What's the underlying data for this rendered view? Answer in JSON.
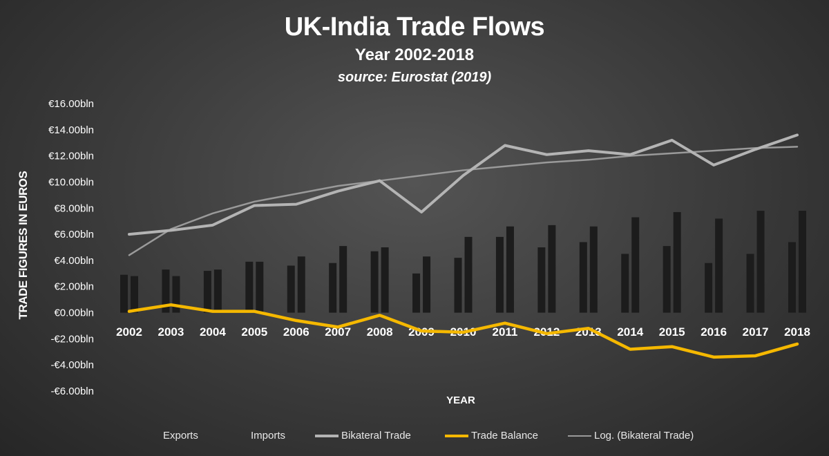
{
  "chart_data": {
    "type": "bar",
    "title": "UK-India Trade Flows",
    "subtitle": "Year 2002-2018",
    "source": "source: Eurostat (2019)",
    "xlabel": "YEAR",
    "ylabel": "TRADE FIGURES IN EUROS",
    "ylim": [
      -6,
      16
    ],
    "yticks": [
      {
        "value": 16,
        "label": "€16.00bln"
      },
      {
        "value": 14,
        "label": "€14.00bln"
      },
      {
        "value": 12,
        "label": "€12.00bln"
      },
      {
        "value": 10,
        "label": "€10.00bln"
      },
      {
        "value": 8,
        "label": "€8.00bln"
      },
      {
        "value": 6,
        "label": "€6.00bln"
      },
      {
        "value": 4,
        "label": "€4.00bln"
      },
      {
        "value": 2,
        "label": "€2.00bln"
      },
      {
        "value": 0,
        "label": "€0.00bln"
      },
      {
        "value": -2,
        "label": "-€2.00bln"
      },
      {
        "value": -4,
        "label": "-€4.00bln"
      },
      {
        "value": -6,
        "label": "-€6.00bln"
      }
    ],
    "categories": [
      "2002",
      "2003",
      "2004",
      "2005",
      "2006",
      "2007",
      "2008",
      "2009",
      "2010",
      "2011",
      "2012",
      "2013",
      "2014",
      "2015",
      "2016",
      "2017",
      "2018"
    ],
    "series": [
      {
        "name": "Exports",
        "type": "bar",
        "color": "#1c1c1c",
        "values": [
          2.9,
          3.3,
          3.2,
          3.9,
          3.6,
          3.8,
          4.7,
          3.0,
          4.2,
          5.8,
          5.0,
          5.4,
          4.5,
          5.1,
          3.8,
          4.5,
          5.4
        ]
      },
      {
        "name": "Imports",
        "type": "bar",
        "color": "#1c1c1c",
        "values": [
          2.8,
          2.8,
          3.3,
          3.9,
          4.3,
          5.1,
          5.0,
          4.3,
          5.8,
          6.6,
          6.7,
          6.6,
          7.3,
          7.7,
          7.2,
          7.8,
          7.8
        ]
      },
      {
        "name": "Bikateral Trade",
        "type": "line",
        "color": "#b4b4b4",
        "values": [
          6.0,
          6.3,
          6.7,
          8.2,
          8.3,
          9.3,
          10.1,
          7.7,
          10.5,
          12.8,
          12.1,
          12.4,
          12.1,
          13.2,
          11.3,
          12.5,
          13.6
        ]
      },
      {
        "name": "Trade Balance",
        "type": "line",
        "color": "#f5b800",
        "values": [
          0.1,
          0.6,
          0.1,
          0.1,
          -0.6,
          -1.1,
          -0.2,
          -1.4,
          -1.5,
          -0.8,
          -1.6,
          -1.2,
          -2.8,
          -2.6,
          -3.4,
          -3.3,
          -2.4
        ]
      },
      {
        "name": "Log. (Bikateral Trade)",
        "type": "trendline",
        "color": "#9a9a9a",
        "values": [
          4.4,
          6.4,
          7.6,
          8.5,
          9.1,
          9.7,
          10.1,
          10.5,
          10.9,
          11.2,
          11.5,
          11.7,
          12.0,
          12.2,
          12.4,
          12.6,
          12.7
        ]
      }
    ],
    "legend_position": "bottom",
    "grid": false
  }
}
